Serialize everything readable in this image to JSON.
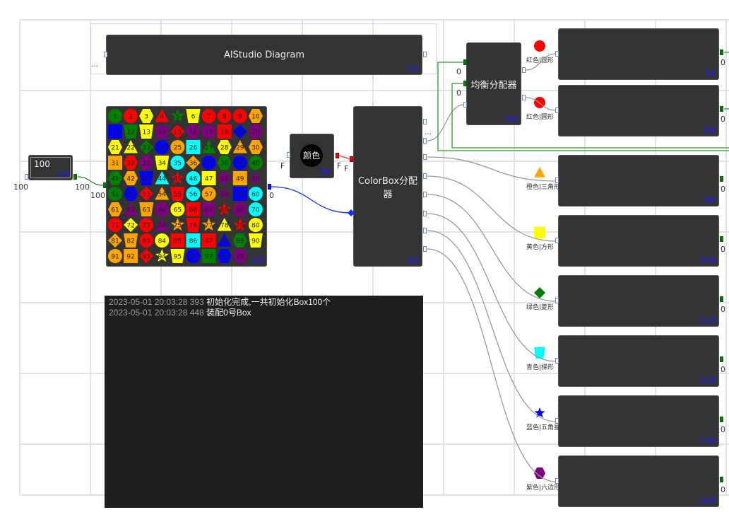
{
  "diagram_title": {
    "label": "AIStudio Diagram",
    "id": "5#"
  },
  "counter_node": {
    "value": "100",
    "id": "1#",
    "in_label": "100",
    "out_label": "100"
  },
  "grid_node": {
    "id": "2#",
    "in_label": "100",
    "out_label": "0",
    "items": [
      "green circle",
      "red circle",
      "yellow hexagon",
      "red triangle",
      "green star",
      "yellow trapezoid",
      "red circle",
      "red circle",
      "red circle",
      "orange hexagon",
      "blue square",
      "green trapezoid",
      "yellow trapezoid",
      "purple pentagon",
      "red diamond",
      "purple hexagon",
      "purple circle",
      "red square",
      "blue diamond",
      "purple hexagon",
      "yellow hexagon",
      "yellow triangle",
      "green diamond",
      "blue circle",
      "orange circle",
      "cyan square",
      "green triangle",
      "yellow hexagon",
      "orange triangle",
      "orange hexagon",
      "orange square",
      "red hexagon",
      "purple hexagon",
      "yellow trapezoid",
      "cyan circle",
      "orange diamond",
      "blue circle",
      "green hexagon",
      "blue circle",
      "green circle",
      "green hexagon",
      "orange hexagon",
      "blue trapezoid",
      "cyan triangle",
      "red star",
      "cyan circle",
      "yellow square",
      "purple diamond",
      "orange square",
      "purple star",
      "green circle",
      "blue hexagon",
      "red diamond",
      "orange triangle",
      "red trapezoid",
      "cyan circle",
      "orange circle",
      "purple star",
      "blue square",
      "cyan circle",
      "orange hexagon",
      "purple triangle",
      "orange trapezoid",
      "purple circle",
      "yellow circle",
      "red square",
      "purple trapezoid",
      "red star",
      "purple circle",
      "cyan circle",
      "red circle",
      "yellow diamond",
      "red circle",
      "purple triangle",
      "orange star",
      "red trapezoid",
      "orange star",
      "yellow triangle",
      "red star",
      "yellow circle",
      "orange diamond",
      "orange trapezoid",
      "red circle",
      "yellow circle",
      "red square",
      "cyan square",
      "red square",
      "blue triangle",
      "green hexagon",
      "yellow trapezoid",
      "orange circle",
      "orange square",
      "red diamond",
      "yellow star",
      "yellow trapezoid",
      "blue circle",
      "green square",
      "blue hexagon",
      "purple hexagon"
    ]
  },
  "color_node": {
    "label": "颜色",
    "id": "3#",
    "in_label": "F",
    "out_label": "F",
    "target_label": "F"
  },
  "colorbox_node": {
    "label": "ColorBox分配器",
    "id": "4#"
  },
  "balancer_node": {
    "label": "均衡分配器",
    "id": "6#",
    "in_labels": [
      "0",
      "0"
    ]
  },
  "outputs": [
    {
      "id": "7#",
      "label": "红色|圆形",
      "color": "red",
      "shape": "circle",
      "count": "0"
    },
    {
      "id": "8#",
      "label": "红色|圆形",
      "color": "red",
      "shape": "circle",
      "count": "0"
    },
    {
      "id": "9#",
      "label": "橙色|三角形",
      "color": "orange",
      "shape": "triangle",
      "count": "0"
    },
    {
      "id": "10#",
      "label": "黄色|方形",
      "color": "yellow",
      "shape": "square",
      "count": "0"
    },
    {
      "id": "11#",
      "label": "绿色|菱形",
      "color": "green",
      "shape": "diamond",
      "count": "0"
    },
    {
      "id": "12#",
      "label": "青色|梯形",
      "color": "cyan",
      "shape": "trapezoid",
      "count": "0"
    },
    {
      "id": "13#",
      "label": "蓝色|五角星",
      "color": "blue",
      "shape": "star",
      "count": "0"
    },
    {
      "id": "14#",
      "label": "紫色|六边形",
      "color": "purple",
      "shape": "hexagon",
      "count": "0"
    }
  ],
  "log": [
    {
      "time": "2023-05-01 20:03:28 393",
      "message": "初始化完成,一共初始化Box100个"
    },
    {
      "time": "2023-05-01 20:03:28 448",
      "message": "装配0号Box"
    }
  ],
  "colors": {
    "red": "#ff0000",
    "green": "#008000",
    "yellow": "#ffff00",
    "orange": "#ffa500",
    "blue": "#0000ff",
    "cyan": "#00ffff",
    "purple": "#800080",
    "node_bg": "#333333",
    "id_text": "#1a1aff"
  }
}
